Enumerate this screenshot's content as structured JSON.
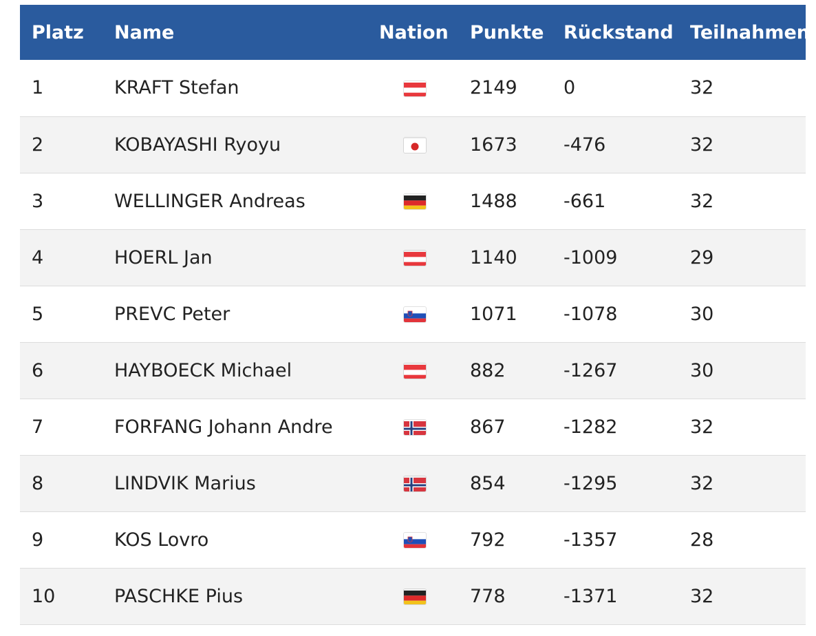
{
  "table": {
    "headers": {
      "platz": "Platz",
      "name": "Name",
      "nation": "Nation",
      "punkte": "Punkte",
      "rueckstand": "Rückstand",
      "teilnahmen": "Teilnahmen"
    },
    "rows": [
      {
        "platz": "1",
        "name": "KRAFT Stefan",
        "nation": "austria-flag-icon",
        "punkte": "2149",
        "rueckstand": "0",
        "teilnahmen": "32"
      },
      {
        "platz": "2",
        "name": "KOBAYASHI Ryoyu",
        "nation": "japan-flag-icon",
        "punkte": "1673",
        "rueckstand": "-476",
        "teilnahmen": "32"
      },
      {
        "platz": "3",
        "name": "WELLINGER Andreas",
        "nation": "germany-flag-icon",
        "punkte": "1488",
        "rueckstand": "-661",
        "teilnahmen": "32"
      },
      {
        "platz": "4",
        "name": "HOERL Jan",
        "nation": "austria-flag-icon",
        "punkte": "1140",
        "rueckstand": "-1009",
        "teilnahmen": "29"
      },
      {
        "platz": "5",
        "name": "PREVC Peter",
        "nation": "slovenia-flag-icon",
        "punkte": "1071",
        "rueckstand": "-1078",
        "teilnahmen": "30"
      },
      {
        "platz": "6",
        "name": "HAYBOECK Michael",
        "nation": "austria-flag-icon",
        "punkte": "882",
        "rueckstand": "-1267",
        "teilnahmen": "30"
      },
      {
        "platz": "7",
        "name": "FORFANG Johann Andre",
        "nation": "norway-flag-icon",
        "punkte": "867",
        "rueckstand": "-1282",
        "teilnahmen": "32"
      },
      {
        "platz": "8",
        "name": "LINDVIK Marius",
        "nation": "norway-flag-icon",
        "punkte": "854",
        "rueckstand": "-1295",
        "teilnahmen": "32"
      },
      {
        "platz": "9",
        "name": "KOS Lovro",
        "nation": "slovenia-flag-icon",
        "punkte": "792",
        "rueckstand": "-1357",
        "teilnahmen": "28"
      },
      {
        "platz": "10",
        "name": "PASCHKE Pius",
        "nation": "germany-flag-icon",
        "punkte": "778",
        "rueckstand": "-1371",
        "teilnahmen": "32"
      }
    ]
  },
  "colors": {
    "header_bg": "#2a5b9e",
    "header_text": "#ffffff",
    "row_alt_bg": "#f3f3f3"
  }
}
